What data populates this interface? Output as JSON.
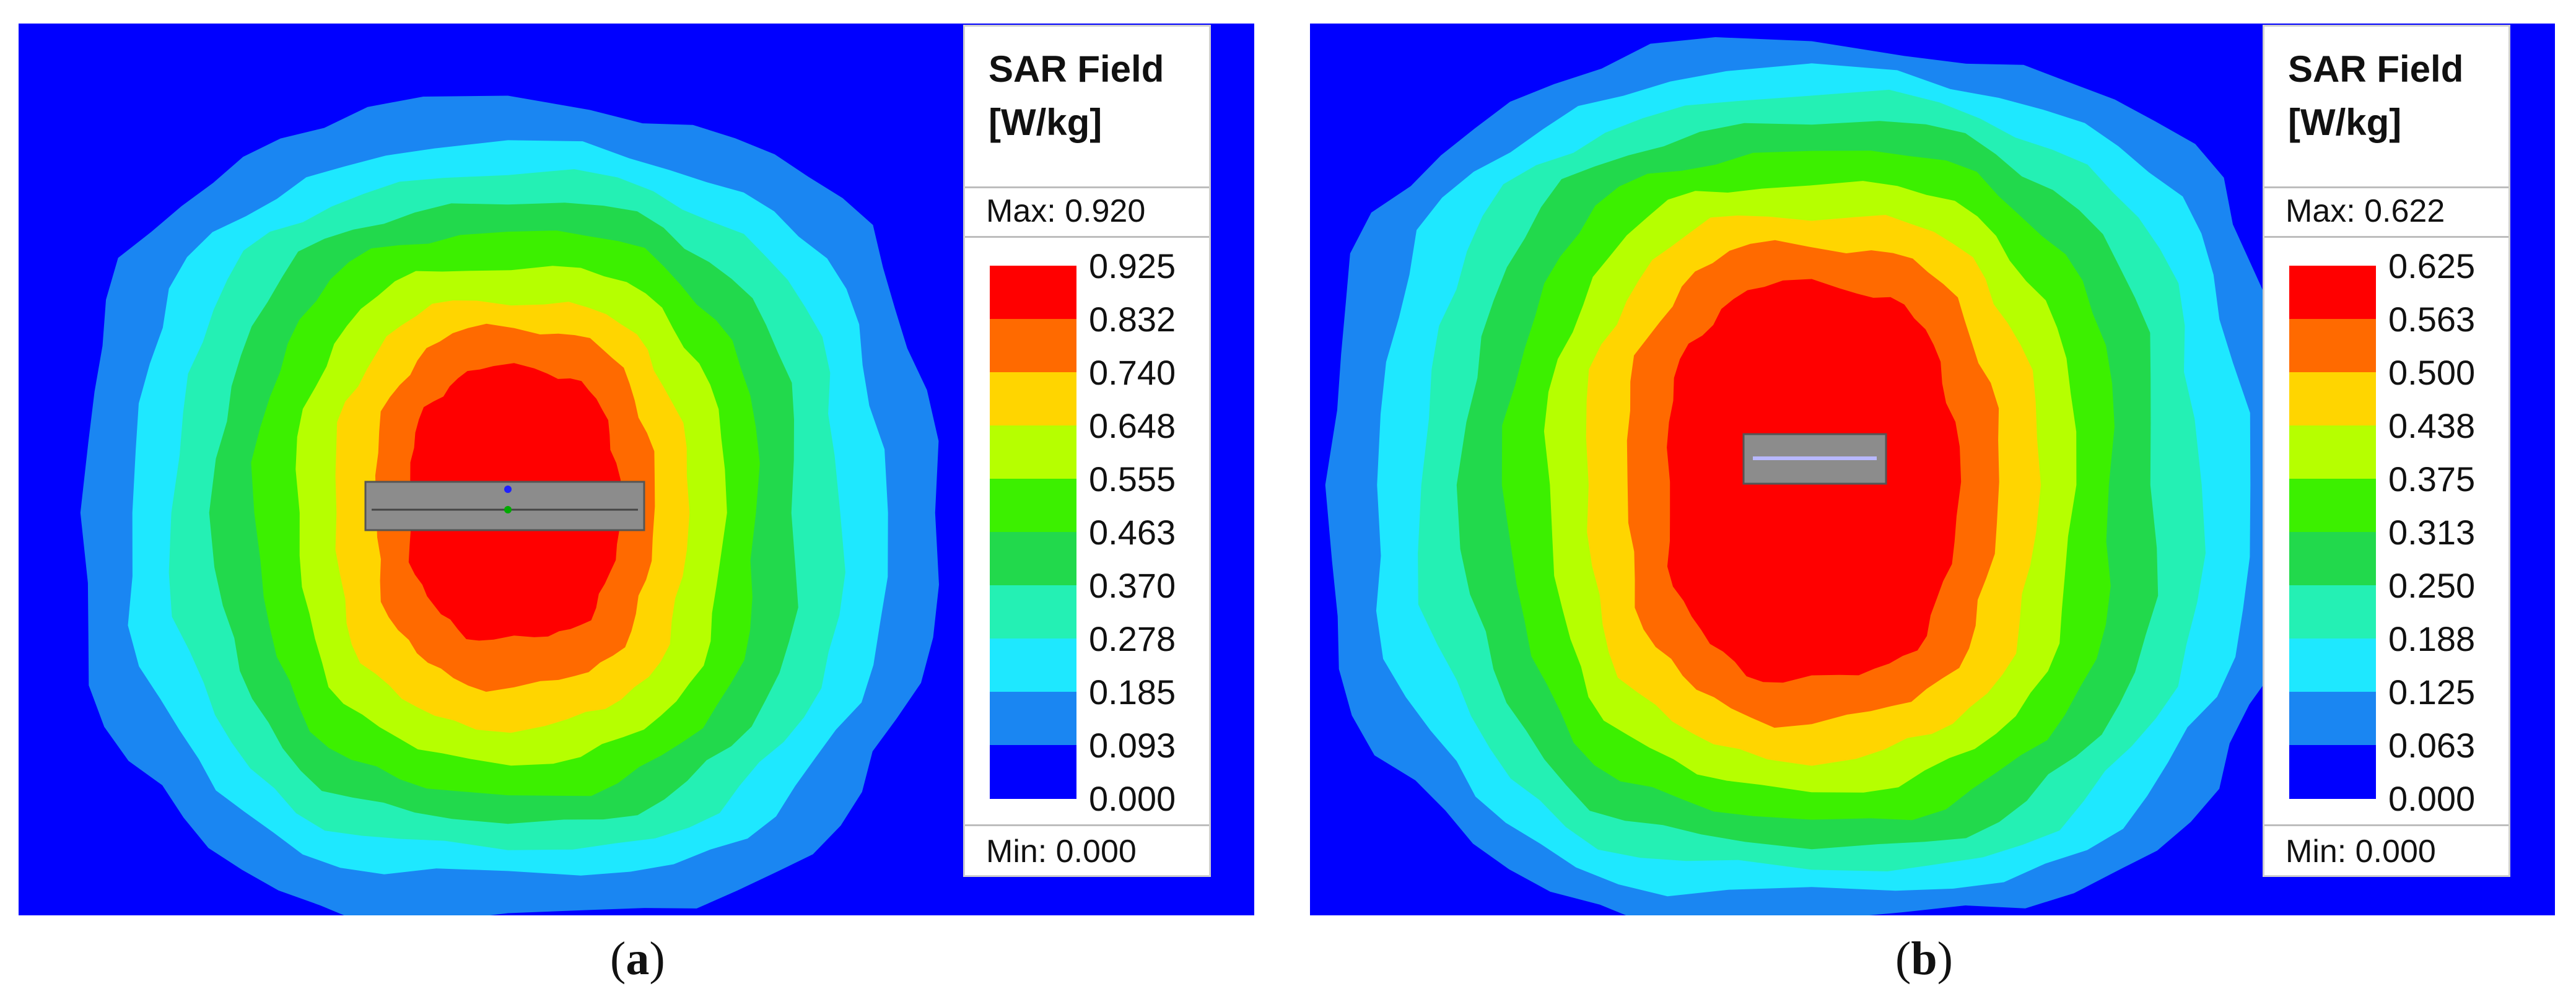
{
  "panels": [
    {
      "caption_open": "(",
      "caption_letter": "a",
      "caption_close": ")",
      "legend": {
        "title_line1": "SAR Field",
        "title_line2": "[W/kg]",
        "max_label": "Max: 0.920",
        "min_label": "Min: 0.000",
        "ticks": [
          "0.925",
          "0.832",
          "0.740",
          "0.648",
          "0.555",
          "0.463",
          "0.370",
          "0.278",
          "0.185",
          "0.093",
          "0.000"
        ]
      }
    },
    {
      "caption_open": "(",
      "caption_letter": "b",
      "caption_close": ")",
      "legend": {
        "title_line1": "SAR Field",
        "title_line2": "[W/kg]",
        "max_label": "Max: 0.622",
        "min_label": "Min: 0.000",
        "ticks": [
          "0.625",
          "0.563",
          "0.500",
          "0.438",
          "0.375",
          "0.313",
          "0.250",
          "0.188",
          "0.125",
          "0.063",
          "0.000"
        ]
      }
    }
  ],
  "colors": {
    "background": "#0000ff",
    "bands": [
      "#ff0000",
      "#ff6a00",
      "#ffd500",
      "#b6ff00",
      "#3cf000",
      "#22d94c",
      "#24f0b4",
      "#1ee8ff",
      "#1a86f2",
      "#0000ff"
    ],
    "device": "#8c8c8c"
  }
}
